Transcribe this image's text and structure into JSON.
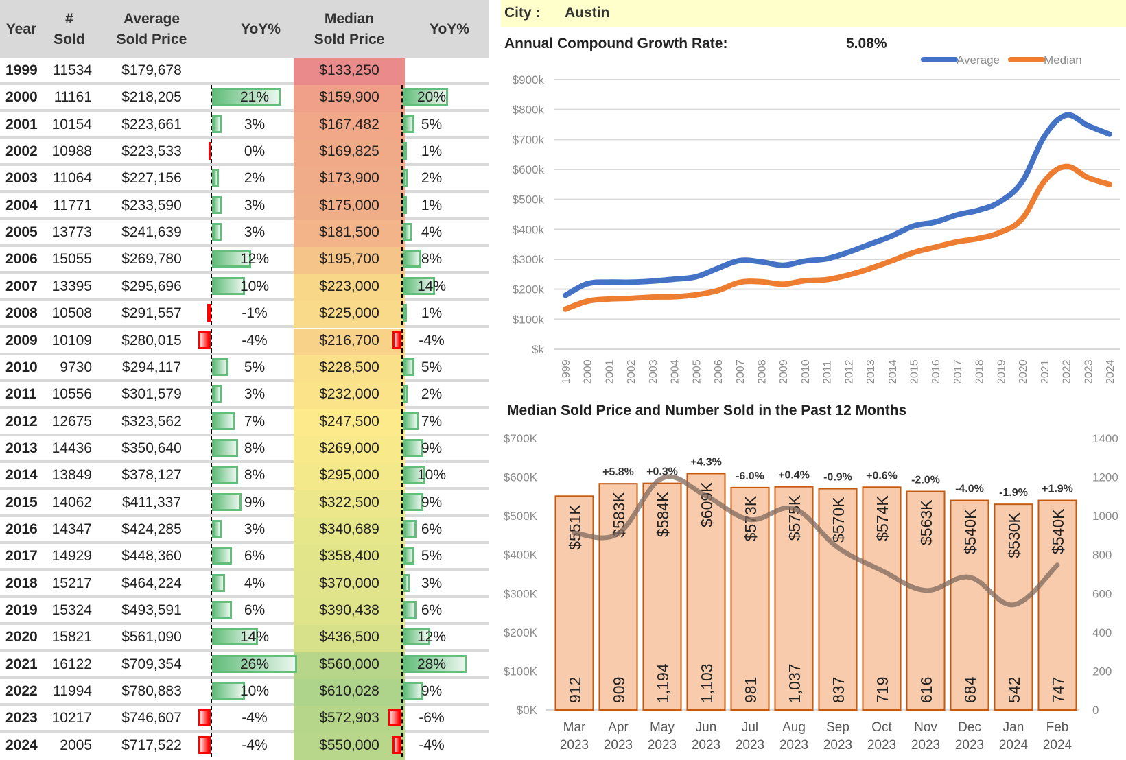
{
  "table": {
    "headers": {
      "year": "Year",
      "sold": [
        "#",
        "Sold"
      ],
      "avg": [
        "Average",
        "Sold Price"
      ],
      "yoy1": "YoY%",
      "median": [
        "Median",
        "Sold Price"
      ],
      "yoy2": "YoY%"
    },
    "rows": [
      {
        "year": "1999",
        "sold": "11534",
        "avg": "$179,678",
        "avg_yoy": null,
        "median": "$133,250",
        "med_yoy": null
      },
      {
        "year": "2000",
        "sold": "11161",
        "avg": "$218,205",
        "avg_yoy": 21,
        "median": "$159,900",
        "med_yoy": 20
      },
      {
        "year": "2001",
        "sold": "10154",
        "avg": "$223,661",
        "avg_yoy": 3,
        "median": "$167,482",
        "med_yoy": 5
      },
      {
        "year": "2002",
        "sold": "10988",
        "avg": "$223,533",
        "avg_yoy": 0,
        "median": "$169,825",
        "med_yoy": 1
      },
      {
        "year": "2003",
        "sold": "11064",
        "avg": "$227,156",
        "avg_yoy": 2,
        "median": "$173,900",
        "med_yoy": 2
      },
      {
        "year": "2004",
        "sold": "11771",
        "avg": "$233,590",
        "avg_yoy": 3,
        "median": "$175,000",
        "med_yoy": 1
      },
      {
        "year": "2005",
        "sold": "13773",
        "avg": "$241,639",
        "avg_yoy": 3,
        "median": "$181,500",
        "med_yoy": 4
      },
      {
        "year": "2006",
        "sold": "15055",
        "avg": "$269,780",
        "avg_yoy": 12,
        "median": "$195,700",
        "med_yoy": 8
      },
      {
        "year": "2007",
        "sold": "13395",
        "avg": "$295,696",
        "avg_yoy": 10,
        "median": "$223,000",
        "med_yoy": 14
      },
      {
        "year": "2008",
        "sold": "10508",
        "avg": "$291,557",
        "avg_yoy": -1,
        "median": "$225,000",
        "med_yoy": 1
      },
      {
        "year": "2009",
        "sold": "10109",
        "avg": "$280,015",
        "avg_yoy": -4,
        "median": "$216,700",
        "med_yoy": -4
      },
      {
        "year": "2010",
        "sold": "9730",
        "avg": "$294,117",
        "avg_yoy": 5,
        "median": "$228,500",
        "med_yoy": 5
      },
      {
        "year": "2011",
        "sold": "10556",
        "avg": "$301,579",
        "avg_yoy": 3,
        "median": "$232,000",
        "med_yoy": 2
      },
      {
        "year": "2012",
        "sold": "12675",
        "avg": "$323,562",
        "avg_yoy": 7,
        "median": "$247,500",
        "med_yoy": 7
      },
      {
        "year": "2013",
        "sold": "14436",
        "avg": "$350,640",
        "avg_yoy": 8,
        "median": "$269,000",
        "med_yoy": 9
      },
      {
        "year": "2014",
        "sold": "13849",
        "avg": "$378,127",
        "avg_yoy": 8,
        "median": "$295,000",
        "med_yoy": 10
      },
      {
        "year": "2015",
        "sold": "14062",
        "avg": "$411,337",
        "avg_yoy": 9,
        "median": "$322,500",
        "med_yoy": 9
      },
      {
        "year": "2016",
        "sold": "14347",
        "avg": "$424,285",
        "avg_yoy": 3,
        "median": "$340,689",
        "med_yoy": 6
      },
      {
        "year": "2017",
        "sold": "14929",
        "avg": "$448,360",
        "avg_yoy": 6,
        "median": "$358,400",
        "med_yoy": 5
      },
      {
        "year": "2018",
        "sold": "15217",
        "avg": "$464,224",
        "avg_yoy": 4,
        "median": "$370,000",
        "med_yoy": 3
      },
      {
        "year": "2019",
        "sold": "15324",
        "avg": "$493,591",
        "avg_yoy": 6,
        "median": "$390,438",
        "med_yoy": 6
      },
      {
        "year": "2020",
        "sold": "15821",
        "avg": "$561,090",
        "avg_yoy": 14,
        "median": "$436,500",
        "med_yoy": 12
      },
      {
        "year": "2021",
        "sold": "16122",
        "avg": "$709,354",
        "avg_yoy": 26,
        "median": "$560,000",
        "med_yoy": 28
      },
      {
        "year": "2022",
        "sold": "11994",
        "avg": "$780,883",
        "avg_yoy": 10,
        "median": "$610,028",
        "med_yoy": 9
      },
      {
        "year": "2023",
        "sold": "10217",
        "avg": "$746,607",
        "avg_yoy": -4,
        "median": "$572,903",
        "med_yoy": -6
      },
      {
        "year": "2024",
        "sold": "2005",
        "avg": "$717,522",
        "avg_yoy": -4,
        "median": "$550,000",
        "med_yoy": -4
      }
    ],
    "median_colors": [
      "#ea8a8a",
      "#f0a088",
      "#f0a888",
      "#f0aa88",
      "#f0ac88",
      "#f0ae88",
      "#f2b488",
      "#f5c488",
      "#f8d888",
      "#f9d98a",
      "#f7d288",
      "#fbe08a",
      "#fbe38a",
      "#fdea8a",
      "#f8e98a",
      "#f3e88a",
      "#ebe78a",
      "#e6e68a",
      "#e3e58a",
      "#e1e48a",
      "#dfe48a",
      "#d6e18a",
      "#b8d68a",
      "#aed38a",
      "#b6d68a",
      "#b8d78a"
    ],
    "pos_color": "#63be7b",
    "neg_color": "#ff0000"
  },
  "header": {
    "city_label": "City :",
    "city_value": "Austin",
    "acgr_label": "Annual Compound Growth Rate:",
    "acgr_value": "5.08%"
  },
  "chart_data": [
    {
      "type": "line",
      "title": "",
      "x": [
        "1999",
        "2000",
        "2001",
        "2002",
        "2003",
        "2004",
        "2005",
        "2006",
        "2007",
        "2008",
        "2009",
        "2010",
        "2011",
        "2012",
        "2013",
        "2014",
        "2015",
        "2016",
        "2017",
        "2018",
        "2019",
        "2020",
        "2021",
        "2022",
        "2023",
        "2024"
      ],
      "series": [
        {
          "name": "Average",
          "color": "#4472c4",
          "values": [
            179678,
            218205,
            223661,
            223533,
            227156,
            233590,
            241639,
            269780,
            295696,
            291557,
            280015,
            294117,
            301579,
            323562,
            350640,
            378127,
            411337,
            424285,
            448360,
            464224,
            493591,
            561090,
            709354,
            780883,
            746607,
            717522
          ]
        },
        {
          "name": "Median",
          "color": "#ed7d31",
          "values": [
            133250,
            159900,
            167482,
            169825,
            173900,
            175000,
            181500,
            195700,
            223000,
            225000,
            216700,
            228500,
            232000,
            247500,
            269000,
            295000,
            322500,
            340689,
            358400,
            370000,
            390438,
            436500,
            560000,
            610028,
            572903,
            550000
          ]
        }
      ],
      "ylim": [
        0,
        900000
      ],
      "yticks": [
        "$k",
        "$100k",
        "$200k",
        "$300k",
        "$400k",
        "$500k",
        "$600k",
        "$700k",
        "$800k",
        "$900k"
      ],
      "legend": "top-right",
      "grid": true
    },
    {
      "type": "bar",
      "title": "Median Sold Price and Number Sold in the Past 12 Months",
      "categories": [
        [
          "Mar",
          "2023"
        ],
        [
          "Apr",
          "2023"
        ],
        [
          "May",
          "2023"
        ],
        [
          "Jun",
          "2023"
        ],
        [
          "Jul",
          "2023"
        ],
        [
          "Aug",
          "2023"
        ],
        [
          "Sep",
          "2023"
        ],
        [
          "Oct",
          "2023"
        ],
        [
          "Nov",
          "2023"
        ],
        [
          "Dec",
          "2023"
        ],
        [
          "Jan",
          "2024"
        ],
        [
          "Feb",
          "2024"
        ]
      ],
      "series": [
        {
          "name": "Median Sold Price",
          "axis": "left",
          "values": [
            551000,
            583000,
            584000,
            609000,
            573000,
            575000,
            570000,
            574000,
            563000,
            540000,
            530000,
            540000
          ],
          "labels": [
            "$551K",
            "$583K",
            "$584K",
            "$609K",
            "$573K",
            "$575K",
            "$570K",
            "$574K",
            "$563K",
            "$540K",
            "$530K",
            "$540K"
          ],
          "fill": "#f8cbad",
          "stroke": "#c55a11"
        },
        {
          "name": "Number Sold",
          "axis": "right",
          "type": "line",
          "values": [
            912,
            909,
            1194,
            1103,
            981,
            1037,
            837,
            719,
            616,
            684,
            542,
            747
          ],
          "labels": [
            "912",
            "909",
            "1,194",
            "1,103",
            "981",
            "1,037",
            "837",
            "719",
            "616",
            "684",
            "542",
            "747"
          ],
          "color": "#7f6a5e"
        }
      ],
      "change_labels": [
        "",
        "+5.8%",
        "+0.3%",
        "+4.3%",
        "-6.0%",
        "+0.4%",
        "-0.9%",
        "+0.6%",
        "-2.0%",
        "-4.0%",
        "-1.9%",
        "+1.9%"
      ],
      "ylim": [
        0,
        700000
      ],
      "yticks": [
        "$0K",
        "$100K",
        "$200K",
        "$300K",
        "$400K",
        "$500K",
        "$600K",
        "$700K"
      ],
      "y2lim": [
        0,
        1400
      ],
      "y2ticks": [
        "0",
        "200",
        "400",
        "600",
        "800",
        "1000",
        "1200",
        "1400"
      ],
      "grid": false
    }
  ]
}
